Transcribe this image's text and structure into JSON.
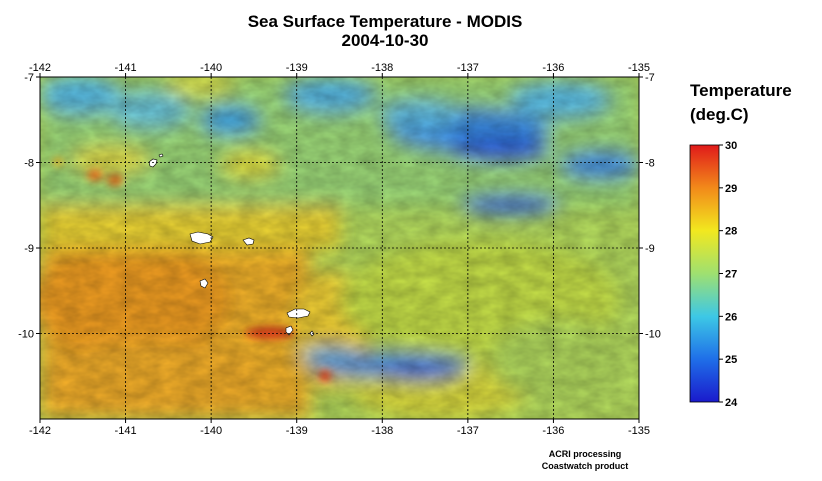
{
  "title": {
    "line1": "Sea Surface Temperature - MODIS",
    "line2": "2004-10-30"
  },
  "legend": {
    "title_line1": "Temperature",
    "title_line2": "(deg.C)",
    "min": 24,
    "max": 30,
    "ticks": [
      "24",
      "25",
      "26",
      "27",
      "28",
      "29",
      "30"
    ],
    "colors": [
      "#1a1acc",
      "#1f6fe8",
      "#3dc8e6",
      "#9fe070",
      "#f2e81f",
      "#f28a1a",
      "#e01a1a"
    ]
  },
  "credits": {
    "line1": "ACRI processing",
    "line2": "Coastwatch product"
  },
  "chart_data": {
    "type": "heatmap",
    "title": "Sea Surface Temperature - MODIS",
    "subtitle": "2004-10-30",
    "x_range": [
      -142,
      -135
    ],
    "y_range": [
      -11,
      -7
    ],
    "x_ticks": [
      "-142",
      "-141",
      "-140",
      "-139",
      "-138",
      "-137",
      "-136",
      "-135"
    ],
    "y_ticks": [
      "-7",
      "-8",
      "-9",
      "-10"
    ],
    "grid": true,
    "value_range": [
      24,
      30
    ],
    "value_label": "Temperature (deg.C)"
  }
}
